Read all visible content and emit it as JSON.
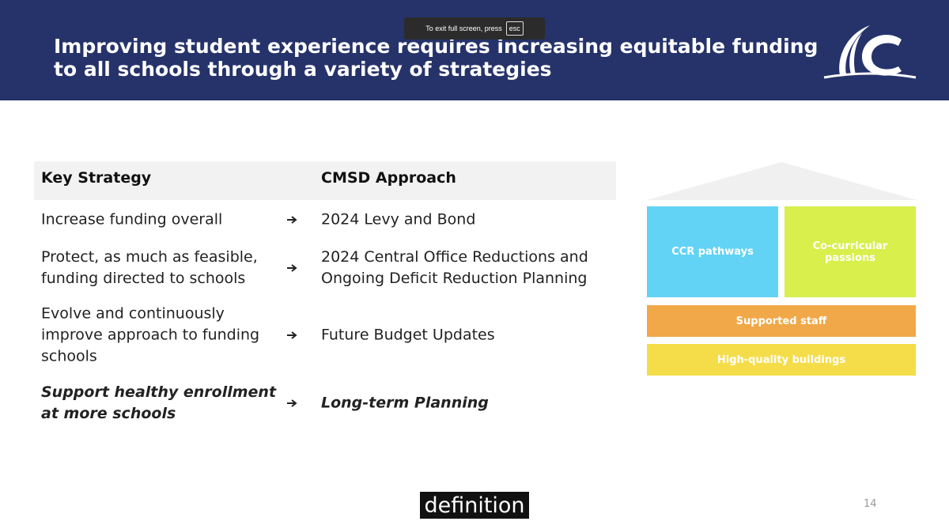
{
  "overlay": {
    "text": "To exit full screen, press",
    "key": "esc"
  },
  "header": {
    "title_lines": [
      "Improving student experience requires increasing equitable funding",
      "to all schools through a variety of strategies"
    ]
  },
  "table": {
    "columns": [
      "Key Strategy",
      "CMSD Approach"
    ],
    "rows": [
      [
        "Increase funding overall",
        "2024 Levy and Bond"
      ],
      [
        "Protect, as much as feasible, funding directed to schools",
        "2024 Central Office Reductions and Ongoing Deficit Reduction Planning"
      ],
      [
        "Evolve and continuously improve approach to funding schools",
        "Future Budget Updates"
      ],
      [
        "Support healthy enrollment at more schools",
        "Long-term Planning"
      ]
    ]
  },
  "diagram": {
    "pillars": [
      "CCR pathways",
      "Co-curricular passions"
    ],
    "bars": [
      "Supported staff",
      "High-quality buildings"
    ]
  },
  "caption": "definition",
  "page_number": "14"
}
